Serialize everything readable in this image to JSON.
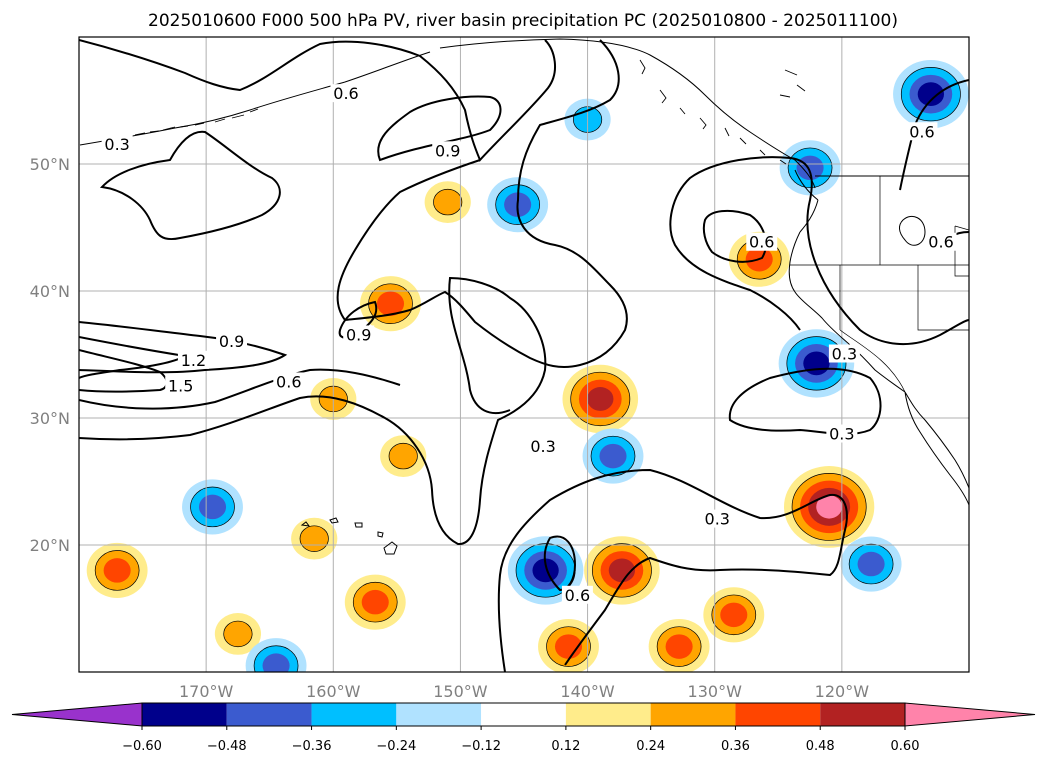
{
  "title": "2025010600 F000 500 hPa PV, river basin precipitation PC (2025010800 - 2025011100)",
  "chart_data": {
    "type": "contour-map",
    "title": "2025010600 F000 500 hPa PV, river basin precipitation PC (2025010800 - 2025011100)",
    "projection": "plate-carree",
    "lon_range": [
      -180,
      -110
    ],
    "lat_range": [
      10,
      60
    ],
    "grid": true,
    "x_ticks": [
      "170°W",
      "160°W",
      "150°W",
      "140°W",
      "130°W",
      "120°W"
    ],
    "x_tick_values": [
      -170,
      -160,
      -150,
      -140,
      -130,
      -120
    ],
    "y_ticks": [
      "50°N",
      "40°N",
      "30°N",
      "20°N"
    ],
    "y_tick_values": [
      50,
      40,
      30,
      20
    ],
    "pv_contour_labels": [
      {
        "text": "0.3",
        "lon": -177,
        "lat": 51.5
      },
      {
        "text": "0.6",
        "lon": -159,
        "lat": 55.5
      },
      {
        "text": "0.9",
        "lon": -151,
        "lat": 51
      },
      {
        "text": "0.9",
        "lon": -168,
        "lat": 36
      },
      {
        "text": "1.2",
        "lon": -171,
        "lat": 34.5
      },
      {
        "text": "1.5",
        "lon": -172,
        "lat": 32.5
      },
      {
        "text": "0.9",
        "lon": -158,
        "lat": 36.5
      },
      {
        "text": "0.6",
        "lon": -163.5,
        "lat": 32.8
      },
      {
        "text": "0.3",
        "lon": -143.5,
        "lat": 27.7
      },
      {
        "text": "0.3",
        "lon": -129.8,
        "lat": 22
      },
      {
        "text": "0.6",
        "lon": -140.8,
        "lat": 16
      },
      {
        "text": "0.6",
        "lon": -126.3,
        "lat": 43.8
      },
      {
        "text": "0.3",
        "lon": -120,
        "lat": 28.7
      },
      {
        "text": "0.3",
        "lon": -119.8,
        "lat": 35
      },
      {
        "text": "0.6",
        "lon": -113.7,
        "lat": 52.5
      },
      {
        "text": "0.6",
        "lon": -112.2,
        "lat": 43.8
      }
    ],
    "precip_pc_anomalies": [
      {
        "lon": -177,
        "lat": 18,
        "max_level": 0.36
      },
      {
        "lon": -126.5,
        "lat": 42.5,
        "max_level": 0.36
      },
      {
        "lon": -139,
        "lat": 31.5,
        "max_level": 0.48
      },
      {
        "lon": -137.3,
        "lat": 18,
        "max_level": 0.48
      },
      {
        "lon": -121,
        "lat": 23,
        "max_level": 0.6
      },
      {
        "lon": -128.5,
        "lat": 14.5,
        "max_level": 0.36
      },
      {
        "lon": -132.8,
        "lat": 12,
        "max_level": 0.36
      },
      {
        "lon": -141.5,
        "lat": 12,
        "max_level": 0.36
      },
      {
        "lon": -155.5,
        "lat": 39,
        "max_level": 0.36
      },
      {
        "lon": -156.7,
        "lat": 15.5,
        "max_level": 0.36
      },
      {
        "lon": -160,
        "lat": 31.5,
        "max_level": 0.24
      },
      {
        "lon": -154.5,
        "lat": 27,
        "max_level": 0.24
      },
      {
        "lon": -161.5,
        "lat": 20.5,
        "max_level": 0.24
      },
      {
        "lon": -167.5,
        "lat": 13,
        "max_level": 0.24
      },
      {
        "lon": -151,
        "lat": 47,
        "max_level": 0.24
      },
      {
        "lon": -113,
        "lat": 55.5,
        "max_level": -0.48
      },
      {
        "lon": -122,
        "lat": 34.3,
        "max_level": -0.48
      },
      {
        "lon": -143.3,
        "lat": 18,
        "max_level": -0.48
      },
      {
        "lon": -117.7,
        "lat": 18.5,
        "max_level": -0.36
      },
      {
        "lon": -169.5,
        "lat": 23,
        "max_level": -0.36
      },
      {
        "lon": -138,
        "lat": 27,
        "max_level": -0.36
      },
      {
        "lon": -145.5,
        "lat": 46.8,
        "max_level": -0.36
      },
      {
        "lon": -122.5,
        "lat": 49.7,
        "max_level": -0.36
      },
      {
        "lon": -164.5,
        "lat": 10.5,
        "max_level": -0.36
      },
      {
        "lon": -140,
        "lat": 53.5,
        "max_level": -0.24
      }
    ],
    "colorbar": {
      "ticks": [
        "−0.60",
        "−0.48",
        "−0.36",
        "−0.24",
        "−0.12",
        "0.12",
        "0.24",
        "0.36",
        "0.48",
        "0.60"
      ],
      "boundaries": [
        -0.6,
        -0.48,
        -0.36,
        -0.24,
        -0.12,
        0.12,
        0.24,
        0.36,
        0.48,
        0.6
      ],
      "colors": [
        "#9932cc",
        "#00008b",
        "#3b5bcf",
        "#00bfff",
        "#b0e2ff",
        "#ffffff",
        "#ffec8b",
        "#ffa500",
        "#ff4500",
        "#b22222",
        "#ff83aa"
      ],
      "extend": "both"
    }
  }
}
